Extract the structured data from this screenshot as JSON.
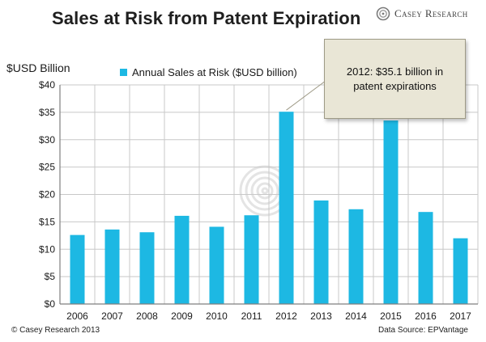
{
  "header": {
    "title": "Sales at Risk from Patent Expiration",
    "brand": "Casey Research"
  },
  "annotation": {
    "text": "2012:  $35.1 billion in patent expirations"
  },
  "footer": {
    "copyright": "© Casey Research 2013",
    "source": "Data Source: EPVantage"
  },
  "colors": {
    "bar": "#1db8e3",
    "axis": "#7f7f7f",
    "callout_bg": "#e9e6d6"
  },
  "chart_data": {
    "type": "bar",
    "title": "Sales at Risk from Patent Expiration",
    "ylabel": "$USD Billion",
    "xlabel": "",
    "categories": [
      "2006",
      "2007",
      "2008",
      "2009",
      "2010",
      "2011",
      "2012",
      "2013",
      "2014",
      "2015",
      "2016",
      "2017"
    ],
    "series": [
      {
        "name": "Annual Sales at Risk ($USD billion)",
        "values": [
          12.6,
          13.6,
          13.1,
          16.1,
          14.1,
          16.2,
          35.1,
          18.9,
          17.3,
          33.5,
          16.8,
          12.0
        ]
      }
    ],
    "ylim": [
      0,
      40
    ],
    "yticks": [
      0,
      5,
      10,
      15,
      20,
      25,
      30,
      35,
      40
    ],
    "ytick_labels": [
      "$0",
      "$5",
      "$10",
      "$15",
      "$20",
      "$25",
      "$30",
      "$35",
      "$40"
    ],
    "grid": true,
    "legend_position": "top-center"
  }
}
